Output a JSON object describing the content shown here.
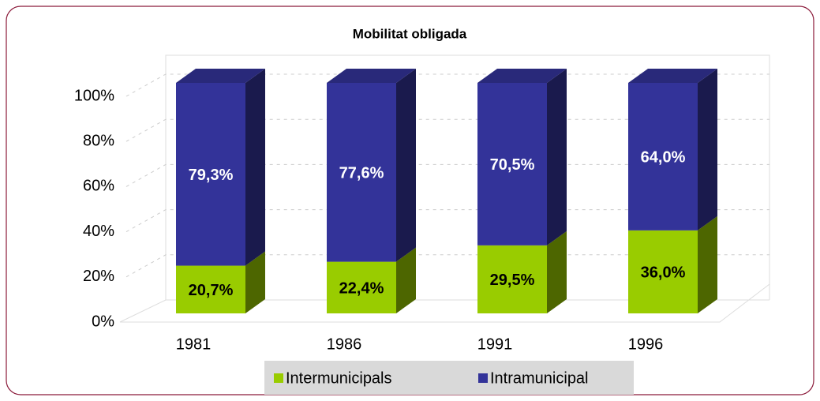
{
  "chart_data": {
    "type": "bar",
    "stacked": true,
    "title": "Mobilitat obligada",
    "categories": [
      "1981",
      "1986",
      "1991",
      "1996"
    ],
    "series": [
      {
        "name": "Intermunicipals",
        "color": "#99cc00",
        "values": [
          20.7,
          22.4,
          29.5,
          36.0
        ],
        "value_labels": [
          "20,7%",
          "22,4%",
          "29,5%",
          "36,0%"
        ]
      },
      {
        "name": "Intramunicipal",
        "color": "#333399",
        "values": [
          79.3,
          77.6,
          70.5,
          64.0
        ],
        "value_labels": [
          "79,3%",
          "77,6%",
          "70,5%",
          "64,0%"
        ]
      }
    ],
    "ylim": [
      0,
      100
    ],
    "yticks": [
      {
        "value": 0,
        "label": "0%"
      },
      {
        "value": 20,
        "label": "20%"
      },
      {
        "value": 40,
        "label": "40%"
      },
      {
        "value": 60,
        "label": "60%"
      },
      {
        "value": 80,
        "label": "80%"
      },
      {
        "value": 100,
        "label": "100%"
      }
    ],
    "grid": true,
    "legend": "bottom"
  }
}
